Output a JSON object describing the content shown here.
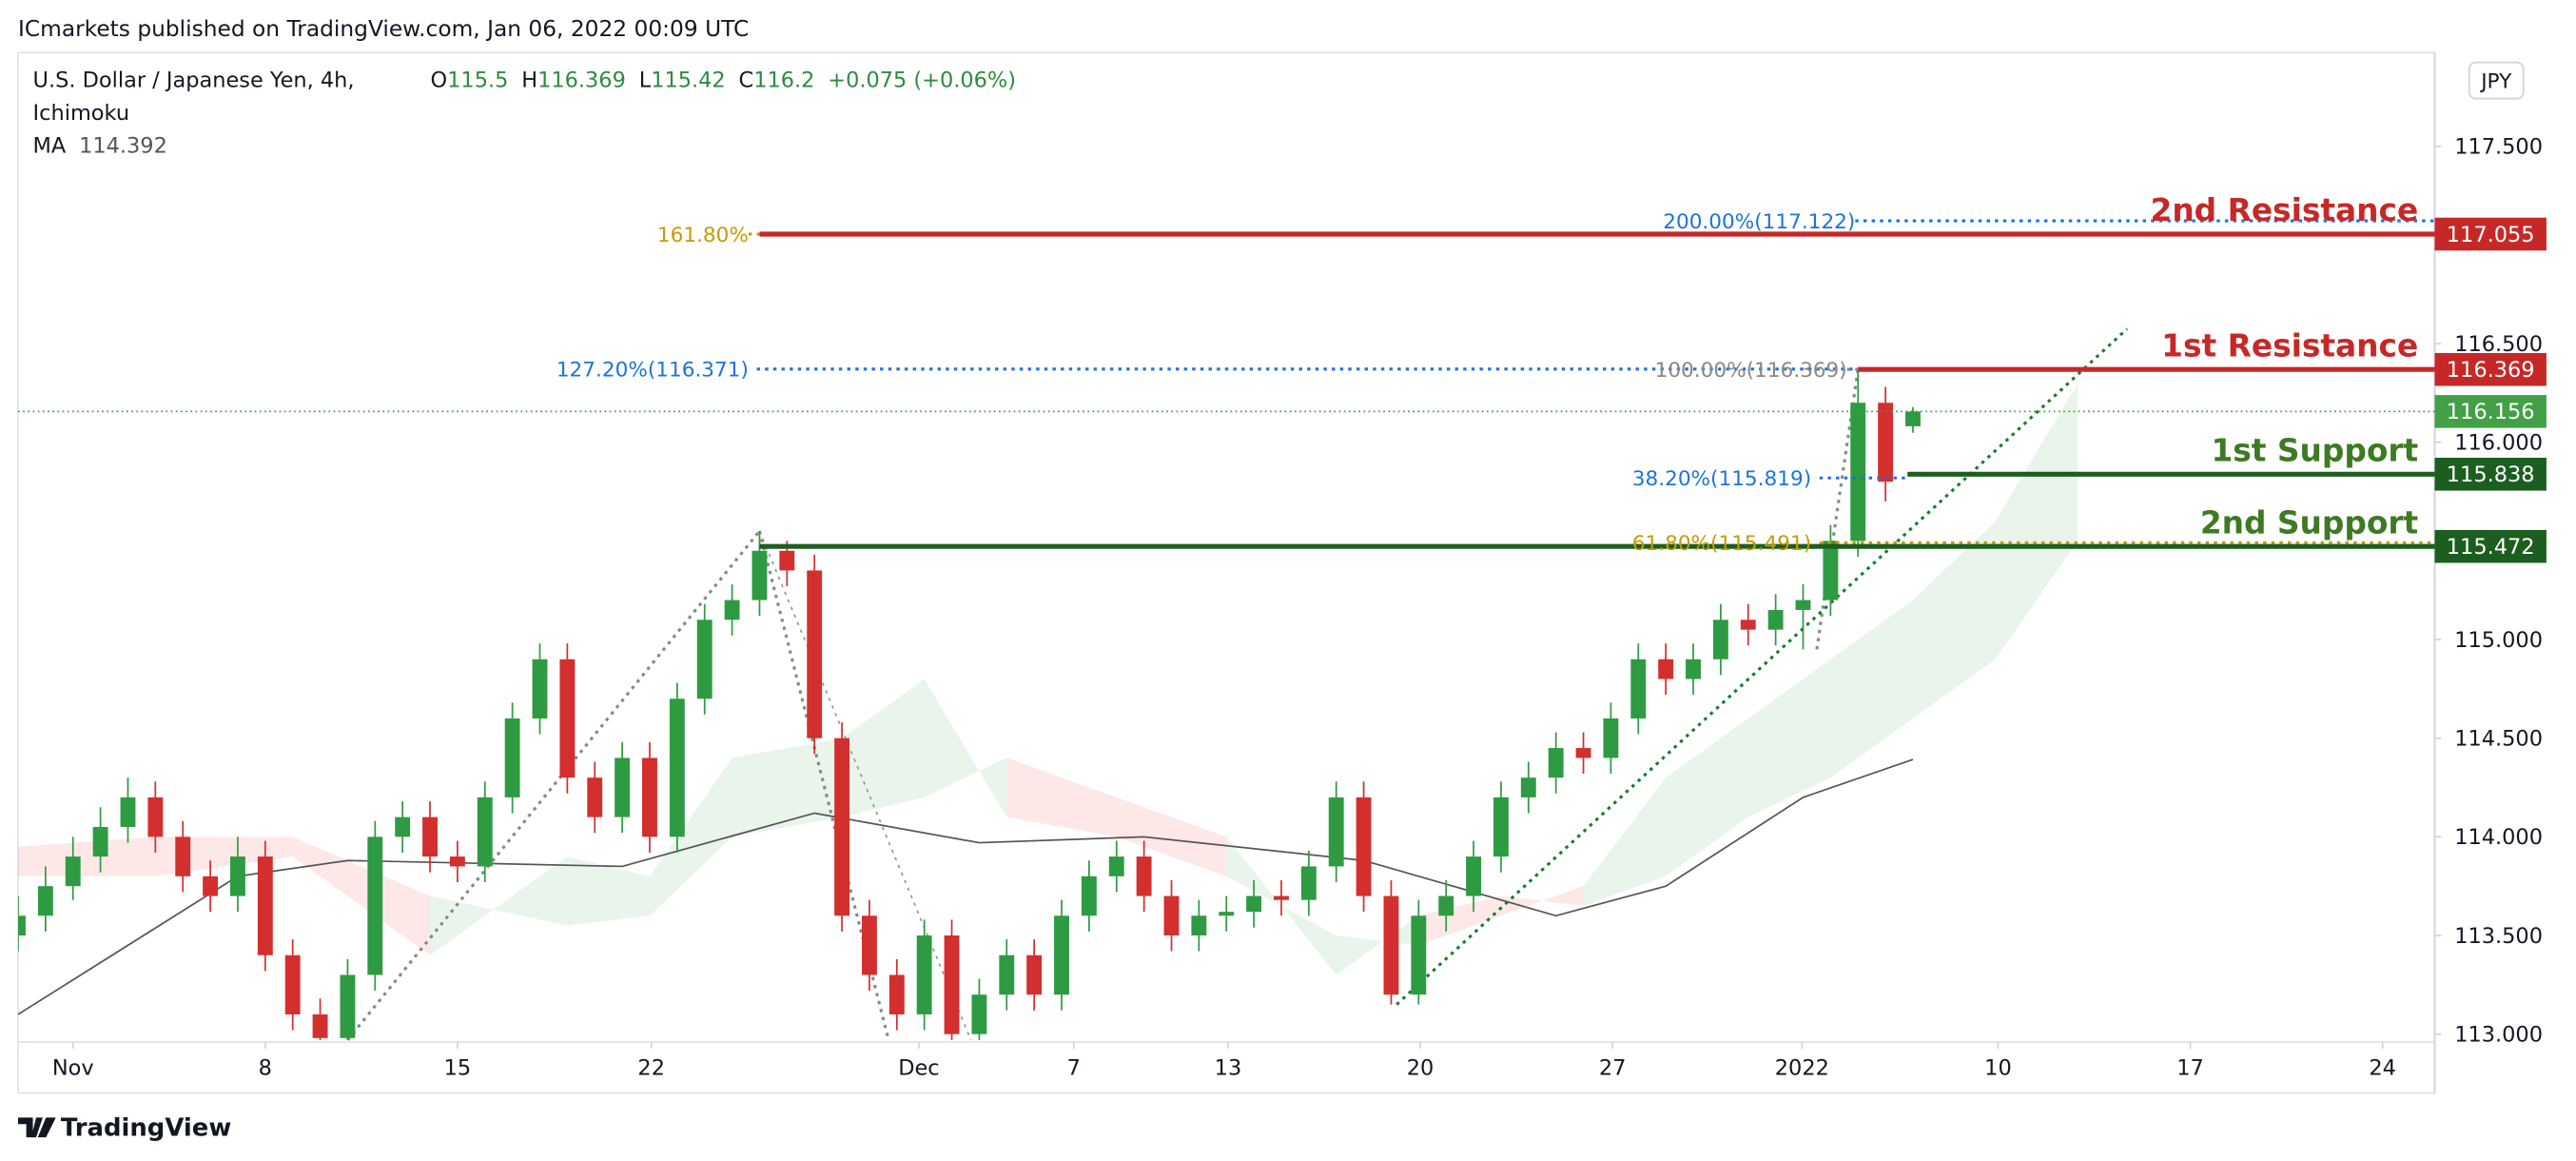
{
  "header": {
    "publisher": "ICmarkets published on TradingView.com, Jan 06, 2022 00:09 UTC",
    "symbol": "U.S. Dollar / Japanese Yen, 4h,",
    "indicator": "Ichimoku",
    "ma_label": "MA",
    "ohlc_labels": [
      "O",
      "H",
      "L",
      "C"
    ],
    "change": "+0.075 (+0.06%)",
    "currency": "JPY"
  },
  "footer": {
    "brand": "TradingView"
  },
  "chart_data": {
    "type": "candlestick",
    "up_color": "#2e9b43",
    "down_color": "#d32f2f",
    "last_price_color": "#43a047",
    "xlim": [
      -2,
      86
    ],
    "ylim": [
      112.96,
      117.975
    ],
    "xticks": [
      {
        "value": 0,
        "label": "Nov"
      },
      {
        "value": 7,
        "label": "8"
      },
      {
        "value": 14,
        "label": "15"
      },
      {
        "value": 21.06,
        "label": "22"
      },
      {
        "value": 30.8,
        "label": "Dec"
      },
      {
        "value": 36.44,
        "label": "7"
      },
      {
        "value": 42.06,
        "label": "13"
      },
      {
        "value": 49.06,
        "label": "20"
      },
      {
        "value": 56.06,
        "label": "27"
      },
      {
        "value": 62.96,
        "label": "2022"
      },
      {
        "value": 70.1,
        "label": "10"
      },
      {
        "value": 77.1,
        "label": "17"
      },
      {
        "value": 84.1,
        "label": "24"
      }
    ],
    "yticks": [
      {
        "value": 117.5,
        "label": "117.500"
      },
      {
        "value": 116.5,
        "label": "116.500"
      },
      {
        "value": 116,
        "label": "116.000"
      },
      {
        "value": 115,
        "label": "115.000"
      },
      {
        "value": 114.5,
        "label": "114.500"
      },
      {
        "value": 114,
        "label": "114.000"
      },
      {
        "value": 113.5,
        "label": "113.500"
      },
      {
        "value": 113,
        "label": "113.000"
      }
    ],
    "x": [
      -2,
      -1,
      0,
      1,
      2,
      3,
      4,
      5,
      6,
      7,
      8,
      9,
      10,
      11,
      12,
      13,
      14,
      15,
      16,
      17,
      18,
      19,
      20,
      21,
      22,
      23,
      24,
      25,
      26,
      27,
      28,
      29,
      30,
      31,
      32,
      33,
      34,
      35,
      36,
      37,
      38,
      39,
      40,
      41,
      42,
      43,
      44,
      45,
      46,
      47,
      48,
      49,
      50,
      51,
      52,
      53,
      54,
      55,
      56,
      57,
      58,
      59,
      60,
      61,
      62,
      63,
      64,
      65,
      66,
      67
    ],
    "open": [
      113.5,
      113.6,
      113.75,
      113.9,
      114.05,
      114.2,
      114.0,
      113.8,
      113.7,
      113.9,
      113.4,
      113.1,
      112.98,
      113.3,
      114.0,
      114.1,
      113.9,
      113.85,
      114.2,
      114.6,
      114.9,
      114.3,
      114.1,
      114.4,
      114.0,
      114.7,
      115.1,
      115.2,
      115.45,
      115.35,
      114.5,
      113.6,
      113.3,
      113.1,
      113.5,
      113.0,
      113.2,
      113.4,
      113.2,
      113.6,
      113.8,
      113.9,
      113.7,
      113.5,
      113.6,
      113.62,
      113.7,
      113.68,
      113.85,
      114.2,
      113.7,
      113.2,
      113.6,
      113.7,
      113.9,
      114.2,
      114.3,
      114.45,
      114.4,
      114.6,
      114.9,
      114.8,
      114.9,
      115.1,
      115.05,
      115.15,
      115.2,
      115.5,
      116.2,
      116.081
    ],
    "high": [
      113.7,
      113.85,
      114.0,
      114.15,
      114.3,
      114.28,
      114.08,
      113.88,
      114.0,
      113.98,
      113.48,
      113.18,
      113.38,
      114.08,
      114.18,
      114.18,
      113.98,
      114.28,
      114.68,
      114.98,
      114.98,
      114.38,
      114.48,
      114.48,
      114.78,
      115.18,
      115.28,
      115.55,
      115.5,
      115.43,
      114.58,
      113.68,
      113.38,
      113.58,
      113.58,
      113.28,
      113.48,
      113.48,
      113.68,
      113.88,
      113.98,
      113.98,
      113.78,
      113.68,
      113.7,
      113.78,
      113.78,
      113.93,
      114.28,
      114.28,
      113.78,
      113.68,
      113.78,
      113.98,
      114.28,
      114.38,
      114.53,
      114.53,
      114.68,
      114.98,
      114.98,
      114.98,
      115.18,
      115.18,
      115.23,
      115.28,
      115.58,
      116.369,
      116.28,
      116.178
    ],
    "low": [
      113.42,
      113.52,
      113.68,
      113.82,
      113.97,
      113.92,
      113.72,
      113.62,
      113.62,
      113.32,
      113.02,
      112.97,
      112.97,
      113.22,
      113.92,
      113.82,
      113.77,
      113.77,
      114.12,
      114.52,
      114.22,
      114.02,
      114.02,
      113.92,
      113.92,
      114.62,
      115.02,
      115.12,
      115.27,
      114.42,
      113.52,
      113.22,
      113.02,
      113.02,
      112.97,
      112.97,
      113.12,
      113.12,
      113.12,
      113.52,
      113.72,
      113.62,
      113.42,
      113.42,
      113.52,
      113.54,
      113.6,
      113.6,
      113.77,
      113.62,
      113.15,
      113.15,
      113.52,
      113.62,
      113.82,
      114.12,
      114.22,
      114.32,
      114.32,
      114.52,
      114.72,
      114.72,
      114.82,
      114.97,
      114.97,
      114.95,
      115.12,
      115.42,
      115.7,
      116.048
    ],
    "close": [
      113.6,
      113.75,
      113.9,
      114.05,
      114.2,
      114.0,
      113.8,
      113.7,
      113.9,
      113.4,
      113.1,
      112.98,
      113.3,
      114.0,
      114.1,
      113.9,
      113.85,
      114.2,
      114.6,
      114.9,
      114.3,
      114.1,
      114.4,
      114.0,
      114.7,
      115.1,
      115.2,
      115.45,
      115.35,
      114.5,
      113.6,
      113.3,
      113.1,
      113.5,
      113.0,
      113.2,
      113.4,
      113.2,
      113.6,
      113.8,
      113.9,
      113.7,
      113.5,
      113.6,
      113.62,
      113.7,
      113.68,
      113.85,
      114.2,
      113.7,
      113.2,
      113.6,
      113.7,
      113.9,
      114.2,
      114.3,
      114.45,
      114.4,
      114.6,
      114.9,
      114.8,
      114.9,
      115.1,
      115.05,
      115.15,
      115.2,
      115.5,
      116.2,
      115.8,
      116.156
    ],
    "ma": {
      "color": "#555555",
      "x": [
        -2,
        6,
        10,
        20,
        27,
        33,
        39,
        47,
        54,
        58,
        63,
        67
      ],
      "values": [
        113.1,
        113.8,
        113.88,
        113.85,
        114.12,
        113.97,
        114.0,
        113.88,
        113.6,
        113.75,
        114.2,
        114.392
      ]
    },
    "cloud": {
      "up_color": "#4caf50",
      "down_color": "#f44336",
      "x": [
        -2,
        3,
        8,
        13,
        18,
        21,
        24,
        28,
        31,
        34,
        38,
        42,
        46,
        49,
        52,
        55,
        58,
        61,
        64,
        67,
        70,
        73
      ],
      "span_a": [
        113.8,
        113.8,
        113.9,
        113.4,
        113.9,
        113.8,
        114.4,
        114.5,
        114.8,
        114.1,
        114.0,
        113.8,
        113.5,
        113.45,
        113.6,
        113.75,
        114.3,
        114.6,
        114.9,
        115.2,
        115.6,
        116.3
      ],
      "span_b": [
        113.95,
        114.0,
        114.0,
        113.7,
        113.55,
        113.6,
        114.0,
        114.1,
        114.2,
        114.4,
        114.2,
        114.0,
        113.3,
        113.6,
        113.7,
        113.65,
        113.8,
        114.1,
        114.3,
        114.6,
        114.9,
        115.5
      ]
    },
    "levels": [
      {
        "name": "2nd Resistance",
        "price": 117.055,
        "x_start": 25,
        "color": "#c62828",
        "label_color": "#c62828"
      },
      {
        "name": "1st Resistance",
        "price": 116.369,
        "x_start": 65,
        "color": "#c62828",
        "label_color": "#c62828"
      },
      {
        "name": "1st Support",
        "price": 115.838,
        "x_start": 66.8,
        "color": "#1b5e20",
        "label_color": "#3d7a22"
      },
      {
        "name": "2nd Support",
        "price": 115.472,
        "x_start": 25,
        "color": "#1b5e20",
        "label_color": "#3d7a22"
      }
    ],
    "fibs": [
      {
        "label": "200.00%(117.122)",
        "price": 117.122,
        "color": "#1e73d9",
        "label_x": 64.9,
        "line_from": 64.9,
        "line_to": 86
      },
      {
        "label": "161.80%",
        "price": 117.055,
        "color": "#c89a00",
        "label_x": 24.6,
        "line_from": 24.6,
        "line_to": 25
      },
      {
        "label": "127.20%(116.371)",
        "price": 116.371,
        "color": "#1e73d9",
        "label_x": 24.6,
        "line_from": 24.9,
        "line_to": 65
      },
      {
        "label": "100.00%(116.369)",
        "price": 116.369,
        "color": "#888888",
        "label_x": 64.6,
        "line_from": 64.6,
        "line_to": 65
      },
      {
        "label": "38.20%(115.819)",
        "price": 115.819,
        "color": "#1e73d9",
        "label_x": 63.3,
        "line_from": 63.6,
        "line_to": 66.8
      },
      {
        "label": "61.80%(115.491)",
        "price": 115.491,
        "color": "#c89a00",
        "label_x": 63.3,
        "line_from": 63.6,
        "line_to": 86
      }
    ],
    "trendlines": [
      {
        "color": "#888888",
        "points": [
          [
            10,
            112.97
          ],
          [
            25,
            115.55
          ]
        ]
      },
      {
        "color": "#888888",
        "points": [
          [
            25,
            115.55
          ],
          [
            29.7,
            112.97
          ]
        ]
      },
      {
        "color": "#999999",
        "points": [
          [
            25,
            115.55
          ],
          [
            32.7,
            112.97
          ]
        ]
      },
      {
        "color": "#888888",
        "points": [
          [
            63.5,
            114.95
          ],
          [
            65,
            116.369
          ]
        ]
      },
      {
        "color": "#1b7a2a",
        "points": [
          [
            48.2,
            113.15
          ],
          [
            74.8,
            116.575
          ]
        ]
      }
    ]
  }
}
